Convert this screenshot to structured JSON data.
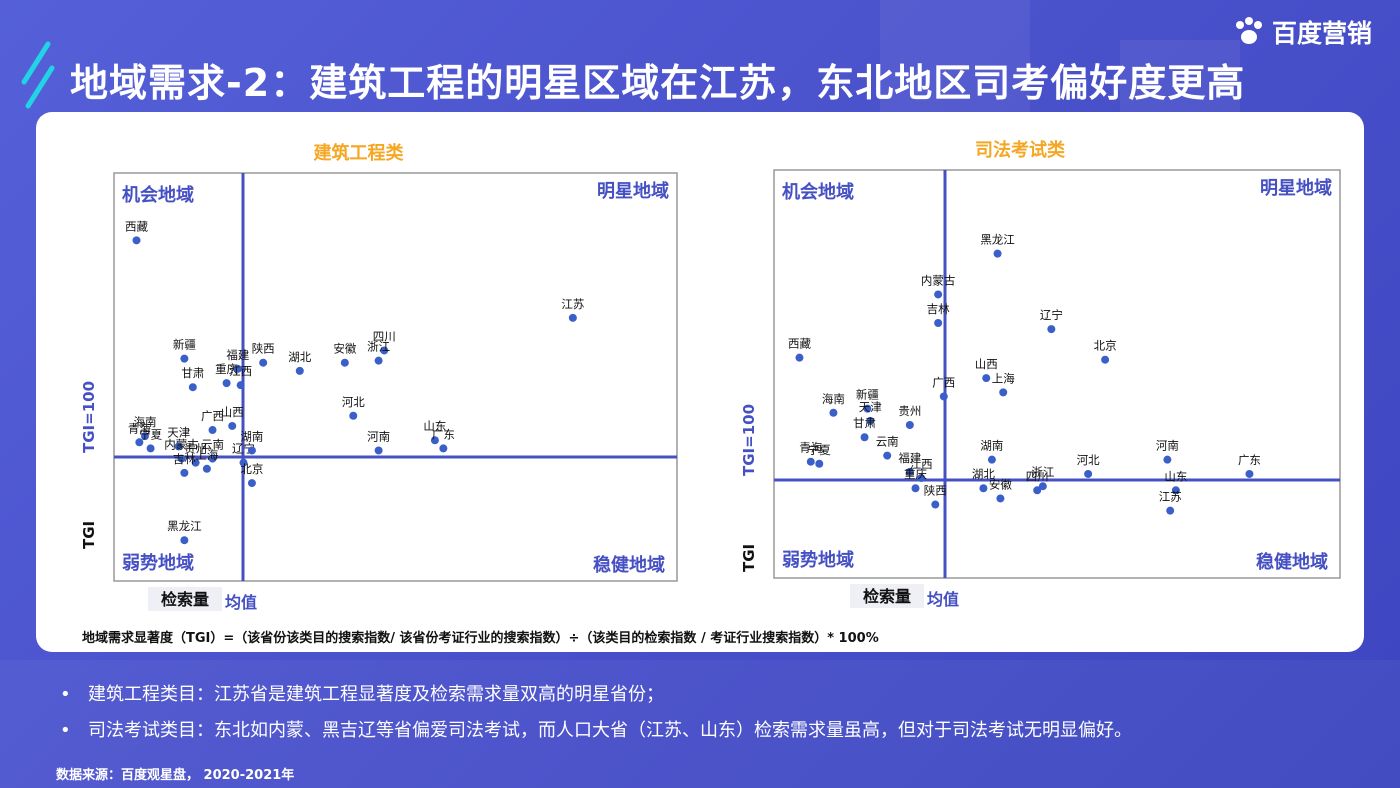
{
  "header": {
    "title": "地域需求-2：建筑工程的明星区域在江苏，东北地区司考偏好度更高",
    "logo_text": "百度营销"
  },
  "charts_common": {
    "quadrants": {
      "top_left": "机会地域",
      "top_right": "明星地域",
      "bottom_left": "弱势地域",
      "bottom_right": "稳健地域"
    },
    "ylabel": "TGI",
    "ref_y_label": "TGI=100",
    "xlabel": "检索量",
    "ref_x_label": "均值"
  },
  "chart_data": [
    {
      "type": "scatter",
      "title": "建筑工程类",
      "points": [
        {
          "name": "西藏",
          "x": 0.04,
          "y": 0.835
        },
        {
          "name": "江苏",
          "x": 0.815,
          "y": 0.645
        },
        {
          "name": "新疆",
          "x": 0.125,
          "y": 0.545
        },
        {
          "name": "甘肃",
          "x": 0.14,
          "y": 0.475
        },
        {
          "name": "重庆",
          "x": 0.2,
          "y": 0.485
        },
        {
          "name": "福建",
          "x": 0.22,
          "y": 0.52
        },
        {
          "name": "江西",
          "x": 0.225,
          "y": 0.48
        },
        {
          "name": "陕西",
          "x": 0.265,
          "y": 0.535
        },
        {
          "name": "湖北",
          "x": 0.33,
          "y": 0.515
        },
        {
          "name": "安徽",
          "x": 0.41,
          "y": 0.535
        },
        {
          "name": "四川",
          "x": 0.48,
          "y": 0.565
        },
        {
          "name": "浙江",
          "x": 0.47,
          "y": 0.54
        },
        {
          "name": "河北",
          "x": 0.425,
          "y": 0.405
        },
        {
          "name": "山西",
          "x": 0.21,
          "y": 0.38
        },
        {
          "name": "广西",
          "x": 0.175,
          "y": 0.37
        },
        {
          "name": "海南",
          "x": 0.055,
          "y": 0.355
        },
        {
          "name": "青海",
          "x": 0.045,
          "y": 0.34
        },
        {
          "name": "宁夏",
          "x": 0.065,
          "y": 0.325
        },
        {
          "name": "天津",
          "x": 0.115,
          "y": 0.33
        },
        {
          "name": "内蒙古",
          "x": 0.12,
          "y": 0.3
        },
        {
          "name": "贵州",
          "x": 0.145,
          "y": 0.29
        },
        {
          "name": "云南",
          "x": 0.175,
          "y": 0.3
        },
        {
          "name": "辽宁",
          "x": 0.23,
          "y": 0.29
        },
        {
          "name": "湖南",
          "x": 0.245,
          "y": 0.32
        },
        {
          "name": "河南",
          "x": 0.47,
          "y": 0.32
        },
        {
          "name": "山东",
          "x": 0.57,
          "y": 0.345
        },
        {
          "name": "广东",
          "x": 0.585,
          "y": 0.325
        },
        {
          "name": "上海",
          "x": 0.165,
          "y": 0.275
        },
        {
          "name": "吉林",
          "x": 0.125,
          "y": 0.265
        },
        {
          "name": "北京",
          "x": 0.245,
          "y": 0.24
        },
        {
          "name": "黑龙江",
          "x": 0.125,
          "y": 0.1
        }
      ]
    },
    {
      "type": "scatter",
      "title": "司法考试类",
      "points": [
        {
          "name": "黑龙江",
          "x": 0.395,
          "y": 0.795
        },
        {
          "name": "内蒙古",
          "x": 0.29,
          "y": 0.695
        },
        {
          "name": "吉林",
          "x": 0.29,
          "y": 0.625
        },
        {
          "name": "辽宁",
          "x": 0.49,
          "y": 0.61
        },
        {
          "name": "北京",
          "x": 0.585,
          "y": 0.535
        },
        {
          "name": "西藏",
          "x": 0.045,
          "y": 0.54
        },
        {
          "name": "山西",
          "x": 0.375,
          "y": 0.49
        },
        {
          "name": "上海",
          "x": 0.405,
          "y": 0.455
        },
        {
          "name": "广西",
          "x": 0.3,
          "y": 0.445
        },
        {
          "name": "海南",
          "x": 0.105,
          "y": 0.405
        },
        {
          "name": "新疆",
          "x": 0.165,
          "y": 0.415
        },
        {
          "name": "贵州",
          "x": 0.24,
          "y": 0.375
        },
        {
          "name": "天津",
          "x": 0.17,
          "y": 0.385
        },
        {
          "name": "甘肃",
          "x": 0.16,
          "y": 0.345
        },
        {
          "name": "青海",
          "x": 0.065,
          "y": 0.285
        },
        {
          "name": "宁夏",
          "x": 0.08,
          "y": 0.28
        },
        {
          "name": "湖南",
          "x": 0.385,
          "y": 0.29
        },
        {
          "name": "云南",
          "x": 0.2,
          "y": 0.3
        },
        {
          "name": "福建",
          "x": 0.24,
          "y": 0.26
        },
        {
          "name": "江西",
          "x": 0.26,
          "y": 0.245
        },
        {
          "name": "重庆",
          "x": 0.25,
          "y": 0.22
        },
        {
          "name": "陕西",
          "x": 0.285,
          "y": 0.18
        },
        {
          "name": "湖北",
          "x": 0.37,
          "y": 0.22
        },
        {
          "name": "安徽",
          "x": 0.4,
          "y": 0.195
        },
        {
          "name": "浙江",
          "x": 0.475,
          "y": 0.225
        },
        {
          "name": "四川",
          "x": 0.465,
          "y": 0.215
        },
        {
          "name": "河北",
          "x": 0.555,
          "y": 0.255
        },
        {
          "name": "河南",
          "x": 0.695,
          "y": 0.29
        },
        {
          "name": "广东",
          "x": 0.84,
          "y": 0.255
        },
        {
          "name": "山东",
          "x": 0.71,
          "y": 0.215
        },
        {
          "name": "江苏",
          "x": 0.7,
          "y": 0.165
        }
      ]
    }
  ],
  "footer": {
    "formula": "地域需求显著度（TGI）=（该省份该类目的搜索指数/ 该省份考证行业的搜索指数）÷（该类目的检索指数 / 考证行业搜索指数）* 100%",
    "bullets": [
      "建筑工程类目：江苏省是建筑工程显著度及检索需求量双高的明星省份；",
      "司法考试类目：东北如内蒙、黑吉辽等省偏爱司法考试，而人口大省（江苏、山东）检索需求量虽高，但对于司法考试无明显偏好。"
    ],
    "bullet_mark": "•",
    "source": "数据来源：百度观星盘， 2020-2021年"
  },
  "colors": {
    "accent": "#4550c3",
    "title_orange": "#f5a623",
    "point": "#3a5fc8"
  }
}
